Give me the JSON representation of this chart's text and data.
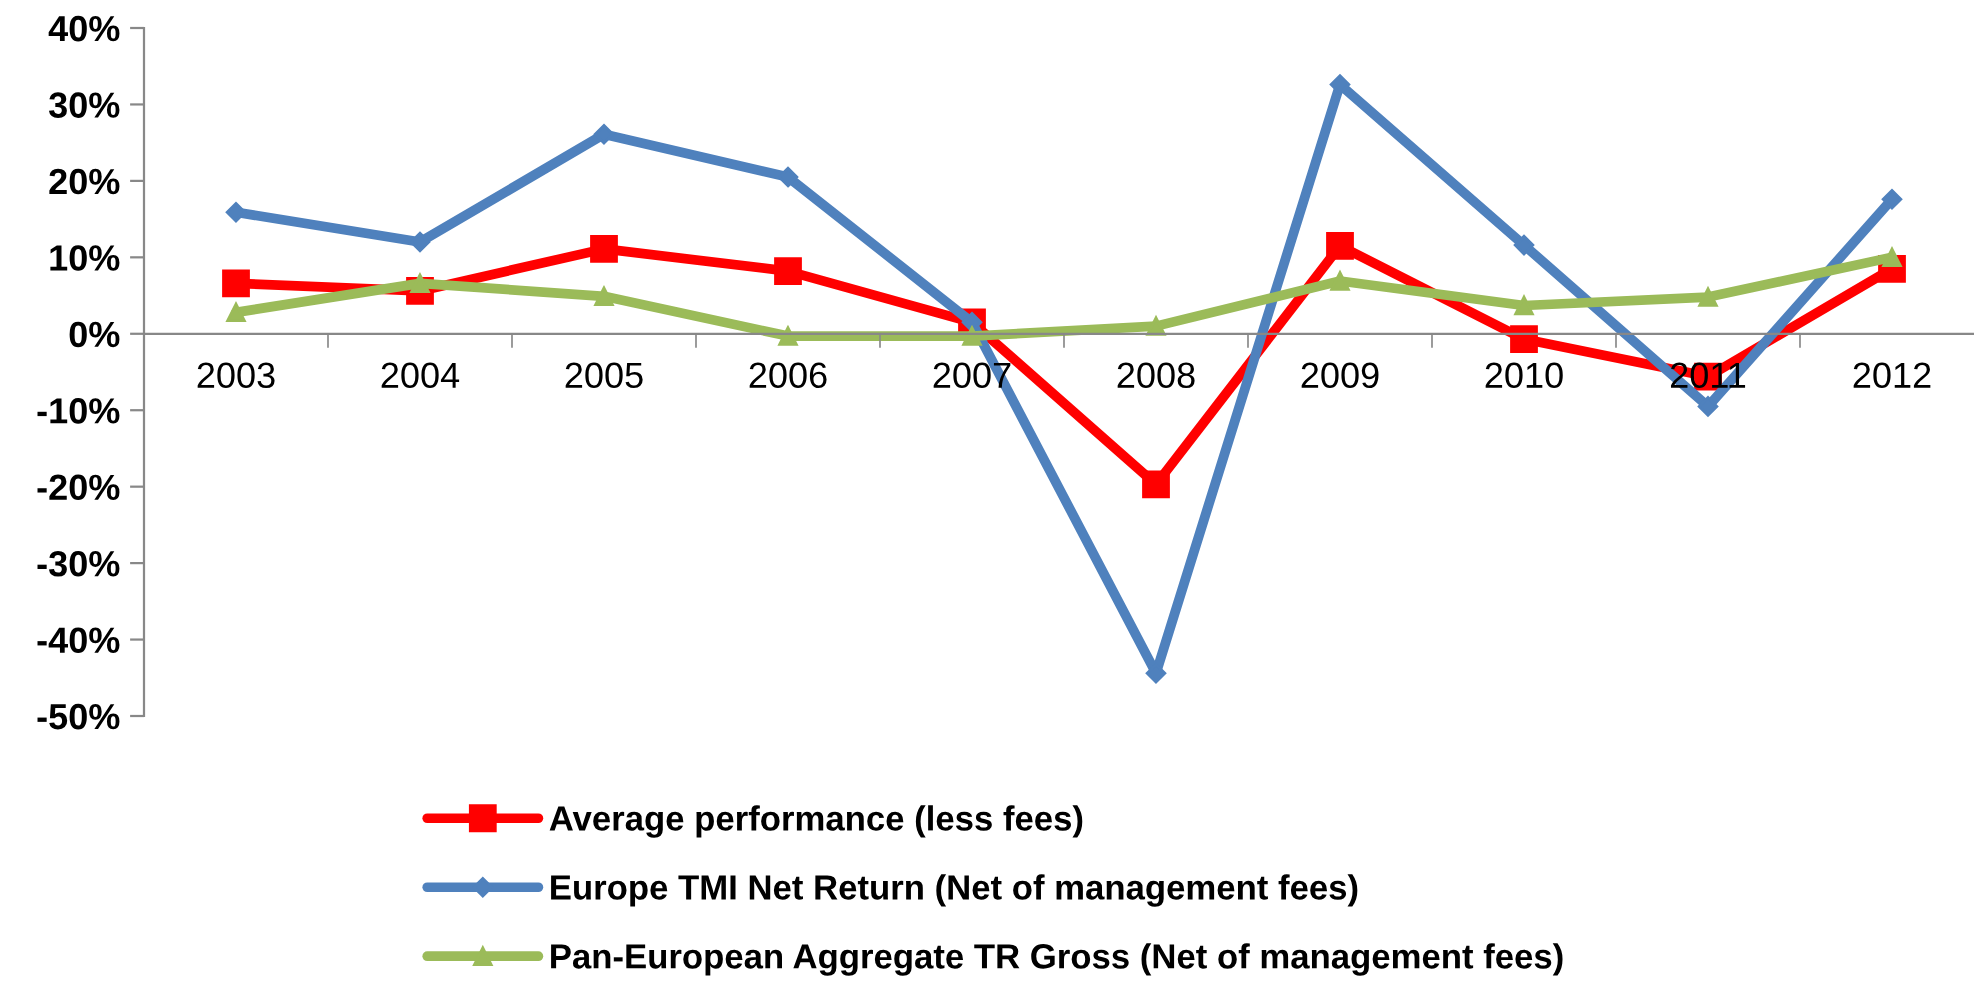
{
  "chart_data": {
    "type": "line",
    "categories": [
      "2003",
      "2004",
      "2005",
      "2006",
      "2007",
      "2008",
      "2009",
      "2010",
      "2011",
      "2012"
    ],
    "series": [
      {
        "name": "Average performance (less fees)",
        "color": "#ff0000",
        "marker": "square",
        "values": [
          6.6,
          5.6,
          11.1,
          8.2,
          1.5,
          -19.7,
          11.5,
          -0.7,
          -5.6,
          8.5
        ]
      },
      {
        "name": "Europe TMI Net Return (Net of management fees)",
        "color": "#4f81bd",
        "marker": "diamond",
        "values": [
          15.9,
          12.0,
          26.1,
          20.5,
          1.5,
          -44.4,
          32.6,
          11.6,
          -9.5,
          17.6
        ]
      },
      {
        "name": "Pan-European Aggregate TR Gross (Net of management fees)",
        "color": "#9bbb59",
        "marker": "triangle",
        "values": [
          2.8,
          6.6,
          4.9,
          -0.3,
          -0.3,
          1.0,
          6.9,
          3.7,
          4.8,
          10.0
        ]
      }
    ],
    "ylim": [
      -50,
      40
    ],
    "yticks": [
      {
        "value": -50,
        "label": "-50%"
      },
      {
        "value": -40,
        "label": "-40%"
      },
      {
        "value": -30,
        "label": "-30%"
      },
      {
        "value": -20,
        "label": "-20%"
      },
      {
        "value": -10,
        "label": "-10%"
      },
      {
        "value": 0,
        "label": "0%"
      },
      {
        "value": 10,
        "label": "10%"
      },
      {
        "value": 20,
        "label": "20%"
      },
      {
        "value": 30,
        "label": "30%"
      },
      {
        "value": 40,
        "label": "40%"
      }
    ],
    "grid": false,
    "legend": "bottom",
    "line_style": "solid"
  }
}
